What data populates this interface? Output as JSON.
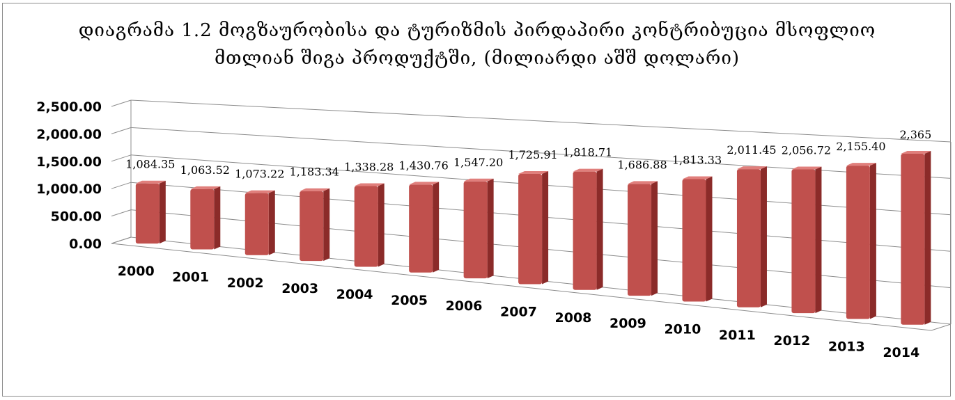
{
  "chart_data": {
    "type": "bar",
    "title": "დიაგრამა 1.2 მოგზაურობისა და ტურიზმის პირდაპირი კონტრიბუცია მსოფლიო მთლიან შიგა პროდუქტში, (მილიარდი აშშ დოლარი)",
    "xlabel": "",
    "ylabel": "",
    "categories": [
      "2000",
      "2001",
      "2002",
      "2003",
      "2004",
      "2005",
      "2006",
      "2007",
      "2008",
      "2009",
      "2010",
      "2011",
      "2012",
      "2013",
      "2014"
    ],
    "values": [
      1084.35,
      1063.52,
      1073.22,
      1183.34,
      1338.28,
      1430.76,
      1547.2,
      1725.91,
      1818.71,
      1686.88,
      1813.33,
      2011.45,
      2056.72,
      2155.4,
      2365
    ],
    "data_labels": [
      "1,084.35",
      "1,063.52",
      "1,073.22",
      "1,183.34",
      "1,338.28",
      "1,430.76",
      "1,547.20",
      "1,725.91",
      "1,818.71",
      "1,686.88",
      "1,813.33",
      "2,011.45",
      "2,056.72",
      "2,155.40",
      "2,365"
    ],
    "y_ticks": [
      "0.00",
      "500.00",
      "1,000.00",
      "1,500.00",
      "2,000.00",
      "2,500.00"
    ],
    "ylim": [
      0,
      2500
    ],
    "grid": true,
    "legend": "none",
    "bar_color": "#c0504d",
    "bar_dark_color": "#8b2b29",
    "bar_light_color": "#e07f7c"
  }
}
